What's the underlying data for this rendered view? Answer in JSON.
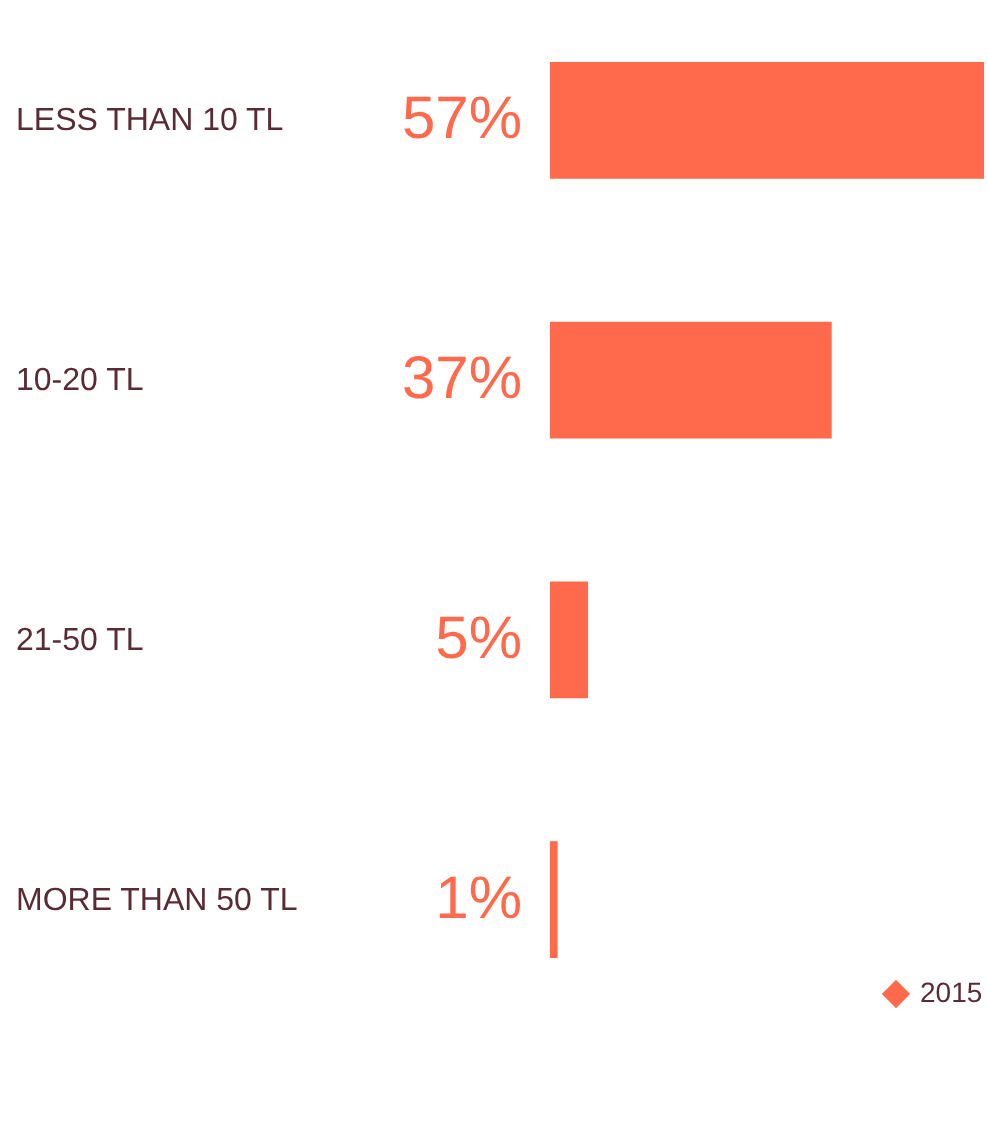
{
  "chart_data": {
    "type": "bar",
    "orientation": "horizontal",
    "categories": [
      "LESS THAN 10 TL",
      "10-20 TL",
      "21-50 TL",
      "MORE THAN 50 TL"
    ],
    "series": [
      {
        "name": "2015",
        "color": "#ff6a4d",
        "values": [
          57,
          37,
          5,
          1
        ],
        "value_labels": [
          "57%",
          "37%",
          "5%",
          "1%"
        ]
      }
    ],
    "legend": "bottom right"
  }
}
